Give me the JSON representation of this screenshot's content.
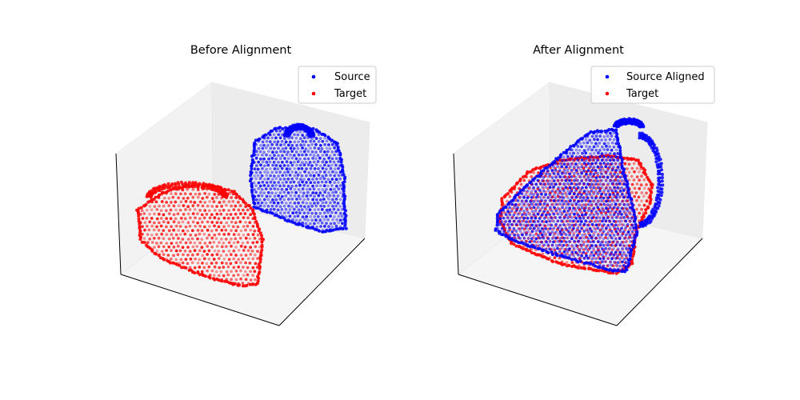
{
  "chart_data": [
    {
      "type": "scatter",
      "title": "Before Alignment",
      "xlabel": "",
      "ylabel": "",
      "zlabel": "",
      "grid": false,
      "legend_position": "top-right",
      "series": [
        {
          "name": "Source",
          "color": "#0000ff",
          "marker": "dot"
        },
        {
          "name": "Target",
          "color": "#ff0000",
          "marker": "dot"
        }
      ]
    },
    {
      "type": "scatter",
      "title": "After Alignment",
      "xlabel": "",
      "ylabel": "",
      "zlabel": "",
      "grid": false,
      "legend_position": "top-right",
      "series": [
        {
          "name": "Source Aligned",
          "color": "#0000ff",
          "marker": "dot"
        },
        {
          "name": "Target",
          "color": "#ff0000",
          "marker": "dot"
        }
      ]
    }
  ]
}
